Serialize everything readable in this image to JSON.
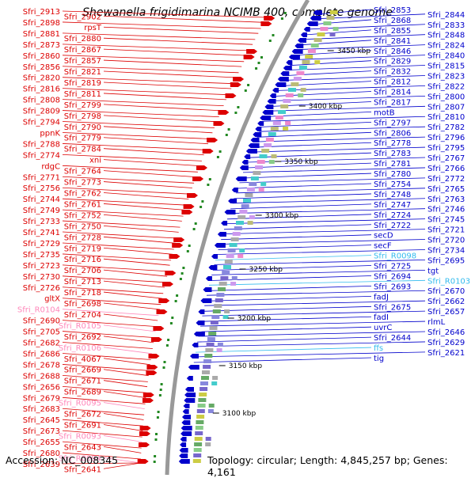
{
  "title": "Shewanella frigidimarina NCIMB 400, complete genome",
  "footer": {
    "accession": "Accession: NC_008345",
    "summary": "Topology: circular; Length: 4,845,257 bp; Genes: 4,161"
  },
  "colors": {
    "plus_strand": "#dd0000",
    "minus_strand": "#0000cc",
    "rna_plus": "#ff88bb",
    "rna_minus": "#33bbee",
    "backbone": "#999999"
  },
  "scale_ticks": [
    "3450 kbp",
    "3400 kbp",
    "3350 kbp",
    "3300 kbp",
    "3250 kbp",
    "3200 kbp",
    "3150 kbp",
    "3100 kbp"
  ],
  "left_labels": [
    {
      "text": "Sfri_2913",
      "kind": "plus"
    },
    {
      "text": "Sfri_2902",
      "kind": "plus"
    },
    {
      "text": "Sfri_2898",
      "kind": "plus"
    },
    {
      "text": "rpsT",
      "kind": "plus"
    },
    {
      "text": "Sfri_2881",
      "kind": "plus"
    },
    {
      "text": "Sfri_2880",
      "kind": "plus"
    },
    {
      "text": "Sfri_2873",
      "kind": "plus"
    },
    {
      "text": "Sfri_2867",
      "kind": "plus"
    },
    {
      "text": "Sfri_2860",
      "kind": "plus"
    },
    {
      "text": "Sfri_2857",
      "kind": "plus"
    },
    {
      "text": "Sfri_2856",
      "kind": "plus"
    },
    {
      "text": "Sfri_2821",
      "kind": "plus"
    },
    {
      "text": "Sfri_2820",
      "kind": "plus"
    },
    {
      "text": "Sfri_2819",
      "kind": "plus"
    },
    {
      "text": "Sfri_2816",
      "kind": "plus"
    },
    {
      "text": "Sfri_2811",
      "kind": "plus"
    },
    {
      "text": "Sfri_2808",
      "kind": "plus"
    },
    {
      "text": "Sfri_2799",
      "kind": "plus"
    },
    {
      "text": "Sfri_2809",
      "kind": "plus"
    },
    {
      "text": "Sfri_2798",
      "kind": "plus"
    },
    {
      "text": "Sfri_2794",
      "kind": "plus"
    },
    {
      "text": "Sfri_2790",
      "kind": "plus"
    },
    {
      "text": "ppnK",
      "kind": "plus"
    },
    {
      "text": "Sfri_2779",
      "kind": "plus"
    },
    {
      "text": "Sfri_2788",
      "kind": "plus"
    },
    {
      "text": "Sfri_2784",
      "kind": "plus"
    },
    {
      "text": "Sfri_2774",
      "kind": "plus"
    },
    {
      "text": "xni",
      "kind": "plus"
    },
    {
      "text": "rdgC",
      "kind": "plus"
    },
    {
      "text": "Sfri_2764",
      "kind": "plus"
    },
    {
      "text": "Sfri_2771",
      "kind": "plus"
    },
    {
      "text": "Sfri_2773",
      "kind": "plus"
    },
    {
      "text": "Sfri_2756",
      "kind": "plus"
    },
    {
      "text": "Sfri_2762",
      "kind": "plus"
    },
    {
      "text": "Sfri_2744",
      "kind": "plus"
    },
    {
      "text": "Sfri_2761",
      "kind": "plus"
    },
    {
      "text": "Sfri_2749",
      "kind": "plus"
    },
    {
      "text": "Sfri_2752",
      "kind": "plus"
    },
    {
      "text": "Sfri_2733",
      "kind": "plus"
    },
    {
      "text": "Sfri_2750",
      "kind": "plus"
    },
    {
      "text": "Sfri_2741",
      "kind": "plus"
    },
    {
      "text": "Sfri_2728",
      "kind": "plus"
    },
    {
      "text": "Sfri_2729",
      "kind": "plus"
    },
    {
      "text": "Sfri_2719",
      "kind": "plus"
    },
    {
      "text": "Sfri_2735",
      "kind": "plus"
    },
    {
      "text": "Sfri_2716",
      "kind": "plus"
    },
    {
      "text": "Sfri_2723",
      "kind": "plus"
    },
    {
      "text": "Sfri_2706",
      "kind": "plus"
    },
    {
      "text": "Sfri_2730",
      "kind": "plus"
    },
    {
      "text": "Sfri_2713",
      "kind": "plus"
    },
    {
      "text": "Sfri_2726",
      "kind": "plus"
    },
    {
      "text": "Sfri_2718",
      "kind": "plus"
    },
    {
      "text": "gltX",
      "kind": "plus"
    },
    {
      "text": "Sfri_2698",
      "kind": "plus"
    },
    {
      "text": "Sfri_R0104",
      "kind": "rna"
    },
    {
      "text": "Sfri_2704",
      "kind": "plus"
    },
    {
      "text": "Sfri_2690",
      "kind": "plus"
    },
    {
      "text": "Sfri_R0105",
      "kind": "rna"
    },
    {
      "text": "Sfri_2705",
      "kind": "plus"
    },
    {
      "text": "Sfri_2692",
      "kind": "plus"
    },
    {
      "text": "Sfri_2682",
      "kind": "plus"
    },
    {
      "text": "Sfri_R0106",
      "kind": "rna"
    },
    {
      "text": "Sfri_2686",
      "kind": "plus"
    },
    {
      "text": "Sfri_4067",
      "kind": "plus"
    },
    {
      "text": "Sfri_2678",
      "kind": "plus"
    },
    {
      "text": "Sfri_2669",
      "kind": "plus"
    },
    {
      "text": "Sfri_2688",
      "kind": "plus"
    },
    {
      "text": "Sfri_2671",
      "kind": "plus"
    },
    {
      "text": "Sfri_2656",
      "kind": "plus"
    },
    {
      "text": "Sfri_2689",
      "kind": "plus"
    },
    {
      "text": "Sfri_2679",
      "kind": "plus"
    },
    {
      "text": "Sfri_R0095",
      "kind": "rna"
    },
    {
      "text": "Sfri_2683",
      "kind": "plus"
    },
    {
      "text": "Sfri_2672",
      "kind": "plus"
    },
    {
      "text": "Sfri_2645",
      "kind": "plus"
    },
    {
      "text": "Sfri_2691",
      "kind": "plus"
    },
    {
      "text": "Sfri_2673",
      "kind": "plus"
    },
    {
      "text": "Sfri_R0093",
      "kind": "rna"
    },
    {
      "text": "Sfri_2655",
      "kind": "plus"
    },
    {
      "text": "Sfri_2643",
      "kind": "plus"
    },
    {
      "text": "Sfri_2680",
      "kind": "plus"
    },
    {
      "text": "Sfri_R0094",
      "kind": "rna"
    },
    {
      "text": "Sfri_2639",
      "kind": "plus"
    },
    {
      "text": "Sfri_2641",
      "kind": "plus"
    }
  ],
  "right_labels": [
    {
      "text": "Sfri_2853",
      "kind": "minus"
    },
    {
      "text": "Sfri_2844",
      "kind": "minus"
    },
    {
      "text": "Sfri_2868",
      "kind": "minus"
    },
    {
      "text": "Sfri_2833",
      "kind": "minus"
    },
    {
      "text": "Sfri_2855",
      "kind": "minus"
    },
    {
      "text": "Sfri_2848",
      "kind": "minus"
    },
    {
      "text": "Sfri_2841",
      "kind": "minus"
    },
    {
      "text": "Sfri_2824",
      "kind": "minus"
    },
    {
      "text": "Sfri_2846",
      "kind": "minus"
    },
    {
      "text": "Sfri_2840",
      "kind": "minus"
    },
    {
      "text": "Sfri_2829",
      "kind": "minus"
    },
    {
      "text": "Sfri_2815",
      "kind": "minus"
    },
    {
      "text": "Sfri_2832",
      "kind": "minus"
    },
    {
      "text": "Sfri_2823",
      "kind": "minus"
    },
    {
      "text": "Sfri_2812",
      "kind": "minus"
    },
    {
      "text": "Sfri_2822",
      "kind": "minus"
    },
    {
      "text": "Sfri_2814",
      "kind": "minus"
    },
    {
      "text": "Sfri_2800",
      "kind": "minus"
    },
    {
      "text": "Sfri_2817",
      "kind": "minus"
    },
    {
      "text": "Sfri_2807",
      "kind": "minus"
    },
    {
      "text": "motB",
      "kind": "minus"
    },
    {
      "text": "Sfri_2810",
      "kind": "minus"
    },
    {
      "text": "Sfri_2797",
      "kind": "minus"
    },
    {
      "text": "Sfri_2782",
      "kind": "minus"
    },
    {
      "text": "Sfri_2806",
      "kind": "minus"
    },
    {
      "text": "Sfri_2796",
      "kind": "minus"
    },
    {
      "text": "Sfri_2778",
      "kind": "minus"
    },
    {
      "text": "Sfri_2795",
      "kind": "minus"
    },
    {
      "text": "Sfri_2783",
      "kind": "minus"
    },
    {
      "text": "Sfri_2767",
      "kind": "minus"
    },
    {
      "text": "Sfri_2781",
      "kind": "minus"
    },
    {
      "text": "Sfri_2766",
      "kind": "minus"
    },
    {
      "text": "Sfri_2780",
      "kind": "minus"
    },
    {
      "text": "Sfri_2772",
      "kind": "minus"
    },
    {
      "text": "Sfri_2754",
      "kind": "minus"
    },
    {
      "text": "Sfri_2765",
      "kind": "minus"
    },
    {
      "text": "Sfri_2748",
      "kind": "minus"
    },
    {
      "text": "Sfri_2763",
      "kind": "minus"
    },
    {
      "text": "Sfri_2747",
      "kind": "minus"
    },
    {
      "text": "Sfri_2746",
      "kind": "minus"
    },
    {
      "text": "Sfri_2724",
      "kind": "minus"
    },
    {
      "text": "Sfri_2745",
      "kind": "minus"
    },
    {
      "text": "Sfri_2722",
      "kind": "minus"
    },
    {
      "text": "Sfri_2721",
      "kind": "minus"
    },
    {
      "text": "secD",
      "kind": "minus"
    },
    {
      "text": "Sfri_2720",
      "kind": "minus"
    },
    {
      "text": "secF",
      "kind": "minus"
    },
    {
      "text": "Sfri_2734",
      "kind": "minus"
    },
    {
      "text": "Sfri_R0098",
      "kind": "rna"
    },
    {
      "text": "Sfri_2695",
      "kind": "minus"
    },
    {
      "text": "Sfri_2725",
      "kind": "minus"
    },
    {
      "text": "tgt",
      "kind": "minus"
    },
    {
      "text": "Sfri_2694",
      "kind": "minus"
    },
    {
      "text": "Sfri_R0103",
      "kind": "rna"
    },
    {
      "text": "Sfri_2693",
      "kind": "minus"
    },
    {
      "text": "Sfri_2670",
      "kind": "minus"
    },
    {
      "text": "fadJ",
      "kind": "minus"
    },
    {
      "text": "Sfri_2662",
      "kind": "minus"
    },
    {
      "text": "Sfri_2675",
      "kind": "minus"
    },
    {
      "text": "Sfri_2657",
      "kind": "minus"
    },
    {
      "text": "fadI",
      "kind": "minus"
    },
    {
      "text": "rlmL",
      "kind": "minus"
    },
    {
      "text": "uvrC",
      "kind": "minus"
    },
    {
      "text": "Sfri_2646",
      "kind": "minus"
    },
    {
      "text": "Sfri_2644",
      "kind": "minus"
    },
    {
      "text": "Sfri_2629",
      "kind": "minus"
    },
    {
      "text": "ffs",
      "kind": "rna"
    },
    {
      "text": "Sfri_2621",
      "kind": "minus"
    },
    {
      "text": "tig",
      "kind": "minus"
    }
  ]
}
